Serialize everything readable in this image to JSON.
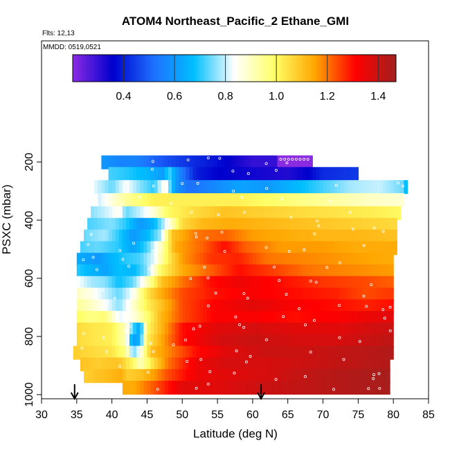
{
  "chart_data": {
    "type": "heatmap",
    "title": "ATOM4 Northeast_Pacific_2 Ethane_GMI",
    "subtitle_flights": "Flts: 12,13",
    "subtitle_dates": "MMDD: 0519,0521",
    "xlabel": "Latitude (deg N)",
    "ylabel": "PSXC (mbar)",
    "xlim": [
      30,
      85
    ],
    "ylim": [
      1000,
      100
    ],
    "y_reversed": true,
    "x_ticks": [
      "30",
      "35",
      "40",
      "45",
      "50",
      "55",
      "60",
      "65",
      "70",
      "75",
      "80",
      "85"
    ],
    "y_ticks": [
      "200",
      "400",
      "600",
      "800",
      "1000"
    ],
    "grid": false,
    "colorbar": {
      "placement": "top-inside",
      "range": [
        0.2,
        1.47
      ],
      "tick_labels": [
        "0.4",
        "0.6",
        "0.8",
        "1.0",
        "1.2",
        "1.4"
      ],
      "tick_values": [
        0.4,
        0.6,
        0.8,
        1.0,
        1.2,
        1.4
      ],
      "colors": [
        "#8a2be2",
        "#0000cd",
        "#1e6fff",
        "#00bfff",
        "#ffffff",
        "#ffff66",
        "#ffa500",
        "#ff0000",
        "#a0201e"
      ]
    },
    "bands": [
      {
        "p": 200,
        "lat_start": 38.5,
        "lat_end": 68.5,
        "pts": [
          [
            38.5,
            0.6
          ],
          [
            41,
            0.56
          ],
          [
            43.5,
            0.56
          ],
          [
            46,
            0.5
          ],
          [
            50,
            0.44
          ],
          [
            55,
            0.38
          ],
          [
            60,
            0.3
          ],
          [
            63.3,
            0.3
          ],
          [
            63.5,
            0.2
          ],
          [
            68.5,
            0.2
          ]
        ]
      },
      {
        "p": 240,
        "lat_start": 39.5,
        "lat_end": 75,
        "pts": [
          [
            39.5,
            0.72
          ],
          [
            42,
            0.7
          ],
          [
            45,
            0.66
          ],
          [
            47.5,
            0.6
          ],
          [
            48,
            0.74
          ],
          [
            49,
            0.62
          ],
          [
            50.5,
            0.5
          ],
          [
            52,
            0.4
          ],
          [
            55,
            0.36
          ],
          [
            60,
            0.34
          ],
          [
            65,
            0.32
          ],
          [
            68,
            0.36
          ],
          [
            70,
            0.42
          ],
          [
            75,
            0.44
          ]
        ]
      },
      {
        "p": 285,
        "lat_start": 37.5,
        "lat_end": 82,
        "pts": [
          [
            37.5,
            0.82
          ],
          [
            40,
            0.74
          ],
          [
            42,
            0.84
          ],
          [
            44,
            0.76
          ],
          [
            46,
            0.7
          ],
          [
            47.5,
            0.88
          ],
          [
            49,
            0.6
          ],
          [
            51,
            0.52
          ],
          [
            54,
            0.56
          ],
          [
            58,
            0.62
          ],
          [
            62,
            0.6
          ],
          [
            66,
            0.66
          ],
          [
            70,
            0.72
          ],
          [
            74,
            0.78
          ],
          [
            78,
            0.8
          ],
          [
            81.5,
            0.74
          ],
          [
            82,
            0.6
          ]
        ]
      },
      {
        "p": 330,
        "lat_start": 38,
        "lat_end": 81.5,
        "pts": [
          [
            38,
            0.8
          ],
          [
            42,
            0.94
          ],
          [
            46,
            1.02
          ],
          [
            52,
            1.02
          ],
          [
            58,
            1.02
          ],
          [
            64,
            0.98
          ],
          [
            70,
            0.94
          ],
          [
            76,
            0.9
          ],
          [
            81.5,
            0.88
          ]
        ]
      },
      {
        "p": 375,
        "lat_start": 37,
        "lat_end": 81,
        "pts": [
          [
            37,
            0.76
          ],
          [
            40,
            0.82
          ],
          [
            41,
            0.86
          ],
          [
            42,
            0.74
          ],
          [
            44,
            0.8
          ],
          [
            46,
            0.88
          ],
          [
            48,
            1.0
          ],
          [
            52,
            1.06
          ],
          [
            56,
            1.1
          ],
          [
            60,
            1.08
          ],
          [
            66,
            1.06
          ],
          [
            72,
            1.04
          ],
          [
            78,
            1.02
          ],
          [
            81,
            1.0
          ]
        ]
      },
      {
        "p": 415,
        "lat_start": 36.5,
        "lat_end": 80.5,
        "pts": [
          [
            36.5,
            0.72
          ],
          [
            40,
            0.76
          ],
          [
            42,
            0.7
          ],
          [
            44,
            0.6
          ],
          [
            46,
            0.66
          ],
          [
            47.5,
            0.8
          ],
          [
            50,
            1.06
          ],
          [
            53,
            1.12
          ],
          [
            57,
            1.14
          ],
          [
            62,
            1.12
          ],
          [
            68,
            1.1
          ],
          [
            74,
            1.08
          ],
          [
            80.5,
            1.06
          ]
        ]
      },
      {
        "p": 455,
        "lat_start": 36,
        "lat_end": 80.5,
        "pts": [
          [
            36,
            0.74
          ],
          [
            39,
            0.78
          ],
          [
            41,
            0.7
          ],
          [
            43,
            0.6
          ],
          [
            45,
            0.66
          ],
          [
            47,
            0.78
          ],
          [
            48.5,
            1.1
          ],
          [
            52,
            1.2
          ],
          [
            56,
            1.22
          ],
          [
            60,
            1.16
          ],
          [
            65,
            1.14
          ],
          [
            70,
            1.12
          ],
          [
            75,
            1.12
          ],
          [
            80.5,
            1.1
          ]
        ]
      },
      {
        "p": 495,
        "lat_start": 35.5,
        "lat_end": 80.5,
        "pts": [
          [
            35.5,
            0.72
          ],
          [
            38,
            0.74
          ],
          [
            41,
            0.7
          ],
          [
            43,
            0.62
          ],
          [
            45,
            0.72
          ],
          [
            47,
            0.9
          ],
          [
            49,
            1.14
          ],
          [
            53,
            1.22
          ],
          [
            56,
            1.3
          ],
          [
            59,
            1.22
          ],
          [
            64,
            1.16
          ],
          [
            70,
            1.16
          ],
          [
            75,
            1.14
          ],
          [
            80.5,
            1.14
          ]
        ]
      },
      {
        "p": 535,
        "lat_start": 35,
        "lat_end": 80,
        "pts": [
          [
            35,
            0.64
          ],
          [
            38,
            0.6
          ],
          [
            40,
            0.66
          ],
          [
            42,
            0.7
          ],
          [
            44,
            0.72
          ],
          [
            46,
            0.82
          ],
          [
            48,
            1.02
          ],
          [
            50,
            1.16
          ],
          [
            54,
            1.26
          ],
          [
            58,
            1.28
          ],
          [
            62,
            1.2
          ],
          [
            68,
            1.18
          ],
          [
            74,
            1.16
          ],
          [
            80,
            1.14
          ]
        ]
      },
      {
        "p": 575,
        "lat_start": 35,
        "lat_end": 80,
        "pts": [
          [
            35,
            0.7
          ],
          [
            37,
            0.66
          ],
          [
            39,
            0.62
          ],
          [
            41,
            0.68
          ],
          [
            43,
            0.66
          ],
          [
            45,
            0.76
          ],
          [
            47,
            1.0
          ],
          [
            50,
            1.14
          ],
          [
            54,
            1.22
          ],
          [
            58,
            1.3
          ],
          [
            62,
            1.26
          ],
          [
            68,
            1.2
          ],
          [
            74,
            1.18
          ],
          [
            80,
            1.16
          ]
        ]
      },
      {
        "p": 615,
        "lat_start": 35,
        "lat_end": 80,
        "pts": [
          [
            35,
            0.84
          ],
          [
            37,
            0.78
          ],
          [
            39,
            0.76
          ],
          [
            41,
            0.68
          ],
          [
            43,
            0.74
          ],
          [
            45,
            0.9
          ],
          [
            47,
            1.1
          ],
          [
            50,
            1.2
          ],
          [
            54,
            1.3
          ],
          [
            58,
            1.34
          ],
          [
            64,
            1.3
          ],
          [
            70,
            1.26
          ],
          [
            76,
            1.24
          ],
          [
            80,
            1.22
          ]
        ]
      },
      {
        "p": 655,
        "lat_start": 35,
        "lat_end": 80,
        "pts": [
          [
            35,
            0.9
          ],
          [
            37,
            0.86
          ],
          [
            39,
            0.8
          ],
          [
            41,
            0.74
          ],
          [
            43,
            0.84
          ],
          [
            45,
            1.04
          ],
          [
            47,
            1.14
          ],
          [
            50,
            1.24
          ],
          [
            55,
            1.3
          ],
          [
            60,
            1.32
          ],
          [
            66,
            1.3
          ],
          [
            72,
            1.28
          ],
          [
            76,
            1.24
          ],
          [
            80,
            1.26
          ]
        ]
      },
      {
        "p": 695,
        "lat_start": 35,
        "lat_end": 80,
        "pts": [
          [
            35,
            0.94
          ],
          [
            37,
            0.9
          ],
          [
            39,
            0.84
          ],
          [
            41,
            0.76
          ],
          [
            43,
            0.88
          ],
          [
            45,
            1.02
          ],
          [
            47,
            1.1
          ],
          [
            50,
            1.24
          ],
          [
            55,
            1.32
          ],
          [
            60,
            1.36
          ],
          [
            66,
            1.32
          ],
          [
            72,
            1.3
          ],
          [
            76,
            1.28
          ],
          [
            80,
            1.3
          ]
        ]
      },
      {
        "p": 735,
        "lat_start": 35,
        "lat_end": 80,
        "pts": [
          [
            35,
            1.0
          ],
          [
            37,
            0.96
          ],
          [
            39,
            0.98
          ],
          [
            41,
            0.82
          ],
          [
            43,
            0.86
          ],
          [
            45,
            0.98
          ],
          [
            47,
            1.12
          ],
          [
            50,
            1.24
          ],
          [
            55,
            1.32
          ],
          [
            60,
            1.32
          ],
          [
            66,
            1.3
          ],
          [
            72,
            1.32
          ],
          [
            76,
            1.34
          ],
          [
            80,
            1.36
          ]
        ]
      },
      {
        "p": 775,
        "lat_start": 35,
        "lat_end": 80,
        "pts": [
          [
            35,
            1.06
          ],
          [
            37,
            1.04
          ],
          [
            40,
            1.02
          ],
          [
            42,
            0.9
          ],
          [
            43,
            0.72
          ],
          [
            44,
            0.62
          ],
          [
            45,
            1.0
          ],
          [
            47,
            1.12
          ],
          [
            50,
            1.3
          ],
          [
            55,
            1.36
          ],
          [
            60,
            1.38
          ],
          [
            66,
            1.36
          ],
          [
            72,
            1.36
          ],
          [
            76,
            1.38
          ],
          [
            80,
            1.4
          ]
        ]
      },
      {
        "p": 815,
        "lat_start": 35,
        "lat_end": 80,
        "pts": [
          [
            35,
            1.06
          ],
          [
            37,
            1.04
          ],
          [
            40,
            1.02
          ],
          [
            42,
            0.9
          ],
          [
            43,
            0.6
          ],
          [
            44,
            0.66
          ],
          [
            45,
            1.02
          ],
          [
            47,
            1.14
          ],
          [
            50,
            1.3
          ],
          [
            55,
            1.38
          ],
          [
            60,
            1.4
          ],
          [
            66,
            1.38
          ],
          [
            72,
            1.38
          ],
          [
            76,
            1.4
          ],
          [
            80,
            1.42
          ]
        ]
      },
      {
        "p": 855,
        "lat_start": 34.5,
        "lat_end": 80,
        "pts": [
          [
            34.5,
            1.08
          ],
          [
            37,
            1.06
          ],
          [
            40,
            1.04
          ],
          [
            42,
            0.96
          ],
          [
            43,
            0.74
          ],
          [
            44,
            0.84
          ],
          [
            45.5,
            1.1
          ],
          [
            48,
            1.18
          ],
          [
            52,
            1.3
          ],
          [
            56,
            1.36
          ],
          [
            62,
            1.4
          ],
          [
            68,
            1.4
          ],
          [
            74,
            1.42
          ],
          [
            80,
            1.44
          ]
        ]
      },
      {
        "p": 895,
        "lat_start": 35.5,
        "lat_end": 79.5,
        "pts": [
          [
            35.5,
            1.1
          ],
          [
            38,
            1.08
          ],
          [
            41,
            1.1
          ],
          [
            43,
            1.0
          ],
          [
            44,
            0.9
          ],
          [
            46,
            1.06
          ],
          [
            48,
            1.2
          ],
          [
            52,
            1.34
          ],
          [
            56,
            1.38
          ],
          [
            62,
            1.38
          ],
          [
            68,
            1.4
          ],
          [
            74,
            1.42
          ],
          [
            79.5,
            1.44
          ]
        ]
      },
      {
        "p": 935,
        "lat_start": 36,
        "lat_end": 79.5,
        "pts": [
          [
            36,
            1.08
          ],
          [
            38,
            1.1
          ],
          [
            40,
            1.12
          ],
          [
            41.5,
            1.14
          ],
          [
            42,
            1.08
          ],
          [
            44,
            1.1
          ],
          [
            46,
            1.16
          ],
          [
            48,
            1.24
          ],
          [
            52,
            1.34
          ],
          [
            56,
            1.36
          ],
          [
            62,
            1.38
          ],
          [
            68,
            1.42
          ],
          [
            74,
            1.44
          ],
          [
            79.5,
            1.46
          ]
        ]
      },
      {
        "p": 975,
        "lat_start": 41.5,
        "lat_end": 79.5,
        "pts": [
          [
            41.5,
            1.14
          ],
          [
            43,
            1.14
          ],
          [
            45,
            1.2
          ],
          [
            47,
            1.26
          ],
          [
            50,
            1.36
          ],
          [
            54,
            1.36
          ],
          [
            58,
            1.38
          ],
          [
            62,
            1.4
          ],
          [
            68,
            1.42
          ],
          [
            74,
            1.44
          ],
          [
            79.5,
            1.46
          ]
        ]
      }
    ],
    "markers": [
      {
        "lat": 34.7,
        "label": "arrow"
      },
      {
        "lat": 61.2,
        "label": "arrow"
      }
    ]
  }
}
